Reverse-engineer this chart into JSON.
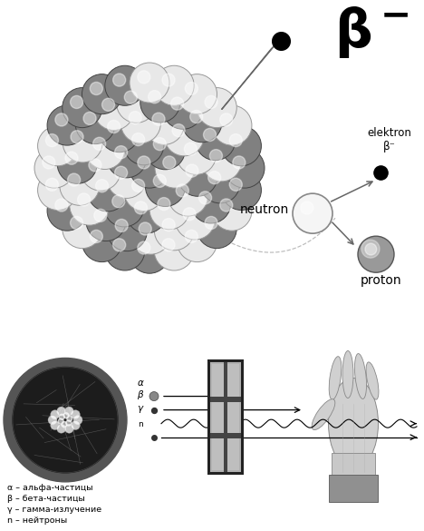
{
  "bg_color": "#ffffff",
  "legend_alpha": "α – альфа-частицы",
  "legend_beta": "β – бета-частицы",
  "legend_gamma": "γ – гамма-излучение",
  "legend_n": "n – нейтроны"
}
